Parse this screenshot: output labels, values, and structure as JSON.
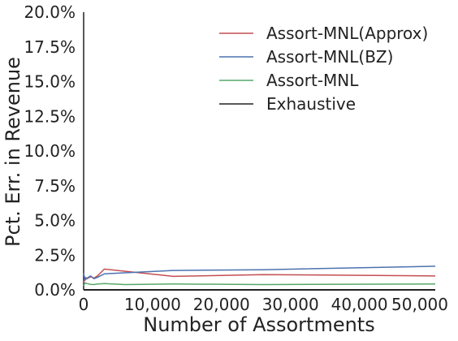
{
  "chart_data": {
    "type": "line",
    "xlabel": "Number of Assortments",
    "ylabel": "Pct. Err. in Revenue",
    "xlim": [
      0,
      51000
    ],
    "ylim": [
      0,
      20
    ],
    "x_ticks": [
      {
        "value": 0,
        "label": "0"
      },
      {
        "value": 10000,
        "label": "10,000"
      },
      {
        "value": 20000,
        "label": "20,000"
      },
      {
        "value": 30000,
        "label": "30,000"
      },
      {
        "value": 40000,
        "label": "40,000"
      },
      {
        "value": 50000,
        "label": "50,000"
      }
    ],
    "y_ticks": [
      {
        "value": 0,
        "label": "0.0%"
      },
      {
        "value": 2.5,
        "label": "2.5%"
      },
      {
        "value": 5,
        "label": "5.0%"
      },
      {
        "value": 7.5,
        "label": "7.5%"
      },
      {
        "value": 10,
        "label": "10.0%"
      },
      {
        "value": 12.5,
        "label": "12.5%"
      },
      {
        "value": 15,
        "label": "15.0%"
      },
      {
        "value": 17.5,
        "label": "17.5%"
      },
      {
        "value": 20,
        "label": "20.0%"
      }
    ],
    "grid": false,
    "legend_position": "top-right",
    "series": [
      {
        "name": "Assort-MNL(Approx)",
        "color": "#c44e52",
        "x": [
          0,
          200,
          500,
          1000,
          1500,
          2000,
          3000,
          13000,
          26000,
          51000
        ],
        "y": [
          0.5,
          0.9,
          0.8,
          0.95,
          0.85,
          1.0,
          1.5,
          0.97,
          1.1,
          1.0
        ]
      },
      {
        "name": "Assort-MNL(BZ)",
        "color": "#4c72b0",
        "x": [
          0,
          200,
          500,
          1000,
          1500,
          2000,
          3000,
          13000,
          26000,
          51000
        ],
        "y": [
          1.2,
          0.7,
          0.85,
          1.0,
          0.8,
          0.9,
          1.15,
          1.4,
          1.45,
          1.7
        ]
      },
      {
        "name": "Assort-MNL",
        "color": "#55a868",
        "x": [
          0,
          200,
          500,
          1000,
          1500,
          2000,
          3000,
          6000,
          13000,
          26000,
          51000
        ],
        "y": [
          0.3,
          0.5,
          0.45,
          0.4,
          0.38,
          0.42,
          0.45,
          0.38,
          0.42,
          0.38,
          0.42
        ]
      },
      {
        "name": "Exhaustive",
        "color": "#222222",
        "x": [
          0,
          51000
        ],
        "y": [
          0,
          0
        ]
      }
    ]
  }
}
